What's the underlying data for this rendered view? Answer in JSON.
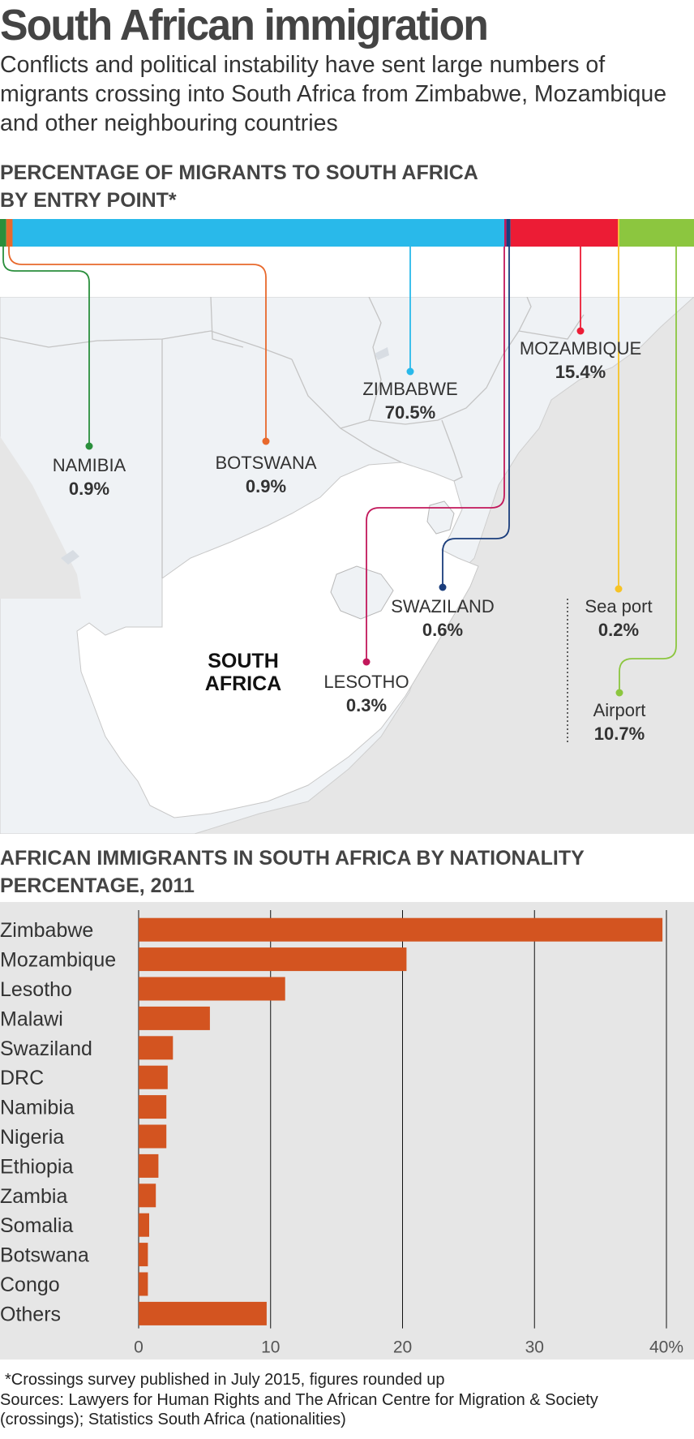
{
  "title": "South African immigration",
  "subtitle": "Conflicts and political instability have sent large numbers of migrants crossing into South Africa from Zimbabwe, Mozambique and other neighbouring countries",
  "map_section": {
    "heading_line1": "PERCENTAGE OF MIGRANTS TO SOUTH AFRICA",
    "heading_line2": "BY ENTRY POINT*",
    "country_label_line1": "SOUTH",
    "country_label_line2": "AFRICA"
  },
  "bar_section": {
    "heading_line1": "AFRICAN IMMIGRANTS IN SOUTH AFRICA BY NATIONALITY",
    "heading_line2": "PERCENTAGE, 2011"
  },
  "footnote": "*Crossings survey published in July 2015, figures rounded up",
  "sources_line1": "Sources: Lawyers for Human Rights and The African Centre for Migration & Society",
  "sources_line2": "(crossings); Statistics South Africa (nationalities)",
  "colors": {
    "map_land": "#eff2f5",
    "map_sea": "#e6e6e6",
    "south_africa": "#ffffff",
    "border": "#b8b8b8",
    "bar": "#d35420",
    "chart_bg": "#e6e6e6"
  },
  "chart_data": [
    {
      "type": "bar",
      "orientation": "stacked-horizontal",
      "segments": [
        {
          "name": "NAMIBIA",
          "value": 0.9,
          "label": "0.9%",
          "color": "#2a8f3c"
        },
        {
          "name": "BOTSWANA",
          "value": 0.9,
          "label": "0.9%",
          "color": "#e8692c"
        },
        {
          "name": "ZIMBABWE",
          "value": 70.5,
          "label": "70.5%",
          "color": "#29b9ea"
        },
        {
          "name": "LESOTHO",
          "value": 0.3,
          "label": "0.3%",
          "color": "#c2185b"
        },
        {
          "name": "SWAZILAND",
          "value": 0.6,
          "label": "0.6%",
          "color": "#1a3d7c"
        },
        {
          "name": "MOZAMBIQUE",
          "value": 15.4,
          "label": "15.4%",
          "color": "#ec1c35"
        },
        {
          "name": "Sea port",
          "value": 0.2,
          "label": "0.2%",
          "color": "#f7c325"
        },
        {
          "name": "Airport",
          "value": 10.7,
          "label": "10.7%",
          "color": "#8cc63f"
        }
      ]
    },
    {
      "type": "bar",
      "orientation": "horizontal",
      "categories": [
        "Zimbabwe",
        "Mozambique",
        "Lesotho",
        "Malawi",
        "Swaziland",
        "DRC",
        "Namibia",
        "Nigeria",
        "Ethiopia",
        "Zambia",
        "Somalia",
        "Botswana",
        "Congo",
        "Others"
      ],
      "values": [
        39.7,
        20.3,
        11.1,
        5.4,
        2.6,
        2.2,
        2.1,
        2.1,
        1.5,
        1.3,
        0.8,
        0.7,
        0.7,
        9.7
      ],
      "xlim": [
        0,
        40
      ],
      "ticks": [
        "0",
        "10",
        "20",
        "30",
        "40%"
      ],
      "grid": true
    }
  ]
}
